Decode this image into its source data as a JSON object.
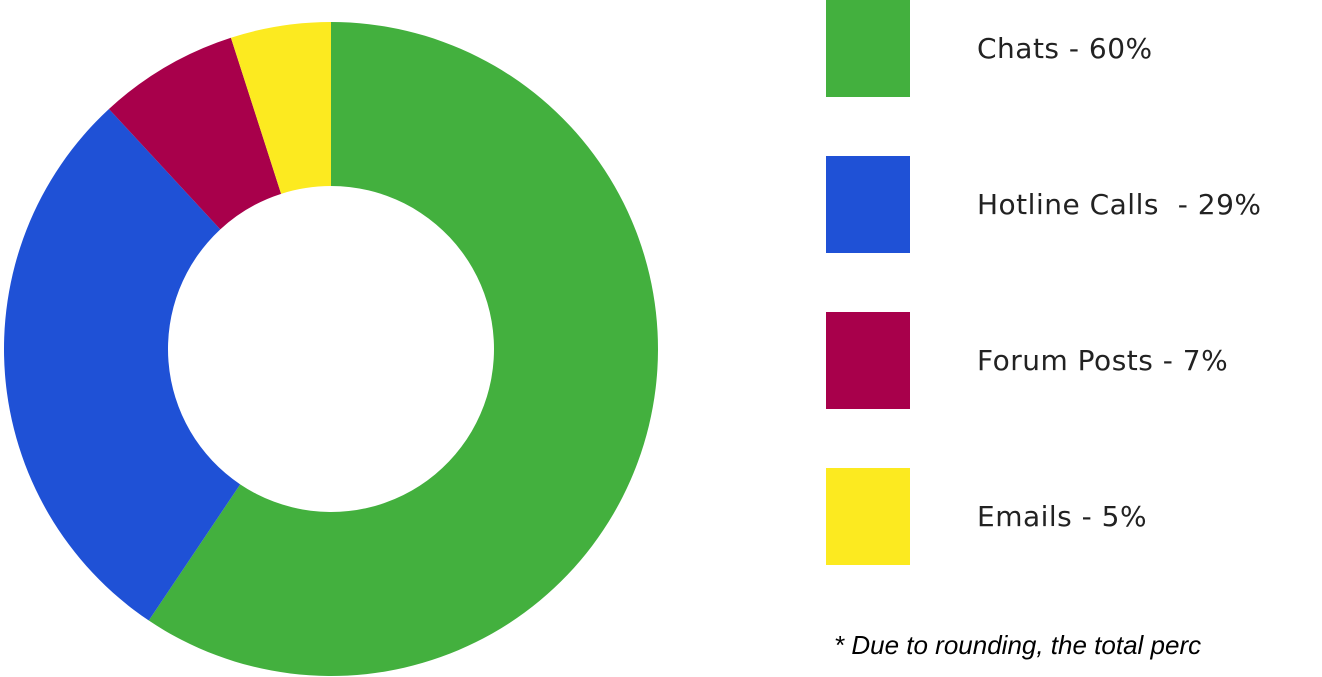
{
  "chart_data": {
    "type": "pie",
    "donut": true,
    "categories": [
      "Chats",
      "Hotline Calls",
      "Forum Posts",
      "Emails"
    ],
    "values": [
      60,
      29,
      7,
      5
    ],
    "unit": "%",
    "colors": [
      "#43b03e",
      "#1f51d6",
      "#a8004b",
      "#fcea20"
    ],
    "legend_position": "right",
    "legend": [
      {
        "label": "Chats - 60%",
        "color": "#43b03e"
      },
      {
        "label": "Hotline Calls  - 29%",
        "color": "#1f51d6"
      },
      {
        "label": "Forum Posts - 7%",
        "color": "#a8004b"
      },
      {
        "label": "Emails - 5%",
        "color": "#fcea20"
      }
    ],
    "footnote": "* Due to rounding, the total perc"
  }
}
